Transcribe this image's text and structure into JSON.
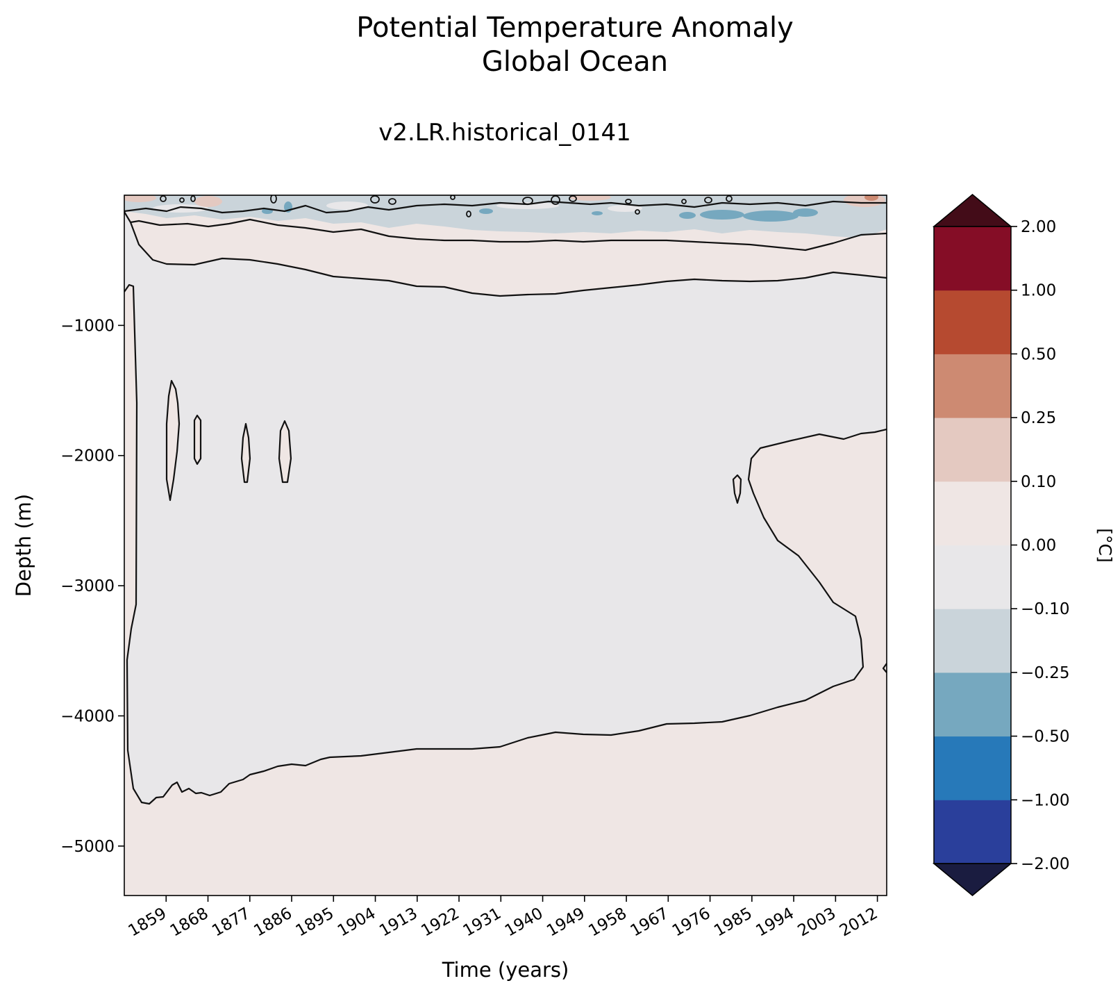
{
  "chart_data": {
    "type": "contourf",
    "title_line1": "Potential Temperature Anomaly",
    "title_line2": "Global Ocean",
    "subtitle": "v2.LR.historical_0141",
    "xlabel": "Time (years)",
    "ylabel": "Depth (m)",
    "xlim": [
      1850,
      2014
    ],
    "ylim": [
      -5380,
      0
    ],
    "xticks": [
      1859,
      1868,
      1877,
      1886,
      1895,
      1904,
      1913,
      1922,
      1931,
      1940,
      1949,
      1958,
      1967,
      1976,
      1985,
      1994,
      2003,
      2012
    ],
    "xtick_labels": [
      "1859",
      "1868",
      "1877",
      "1886",
      "1895",
      "1904",
      "1913",
      "1922",
      "1931",
      "1940",
      "1949",
      "1958",
      "1967",
      "1976",
      "1985",
      "1994",
      "2003",
      "2012"
    ],
    "yticks": [
      -1000,
      -2000,
      -3000,
      -4000,
      -5000
    ],
    "ytick_labels": [
      "−1000",
      "−2000",
      "−3000",
      "−4000",
      "−5000"
    ],
    "colorbar": {
      "label": "[°C]",
      "levels": [
        -2.0,
        -1.0,
        -0.5,
        -0.25,
        -0.1,
        0.0,
        0.1,
        0.25,
        0.5,
        1.0,
        2.0
      ],
      "level_labels": [
        "−2.00",
        "−1.00",
        "−0.50",
        "−0.25",
        "−0.10",
        "0.00",
        "0.10",
        "0.25",
        "0.50",
        "1.00",
        "2.00"
      ],
      "colors": [
        "#2a3f9b",
        "#2779b9",
        "#76a8bf",
        "#cad4da",
        "#e8e7e9",
        "#efe6e4",
        "#e4c9c1",
        "#cd8a72",
        "#b64a30",
        "#850d26"
      ],
      "under_color": "#1a1c40",
      "over_color": "#430c18"
    },
    "regions": [
      {
        "name": "deep-warm-bottom",
        "value_range": [
          0.0,
          0.1
        ],
        "depth_range": [
          -5380,
          -4300
        ]
      },
      {
        "name": "mid-depth-cool-core",
        "value_range": [
          -0.1,
          0.0
        ],
        "depth_range": [
          -4500,
          -700
        ]
      },
      {
        "name": "upper-warm-band",
        "value_range": [
          0.0,
          0.1
        ],
        "depth_range": [
          -800,
          -150
        ]
      },
      {
        "name": "surface-cool-patches",
        "value_range": [
          -0.5,
          -0.1
        ],
        "depth_range": [
          -350,
          0
        ]
      },
      {
        "name": "late-deep-warming",
        "value_range": [
          0.0,
          0.1
        ],
        "depth_range": [
          -3900,
          -1800
        ],
        "time_range": [
          1983,
          2014
        ]
      }
    ]
  }
}
